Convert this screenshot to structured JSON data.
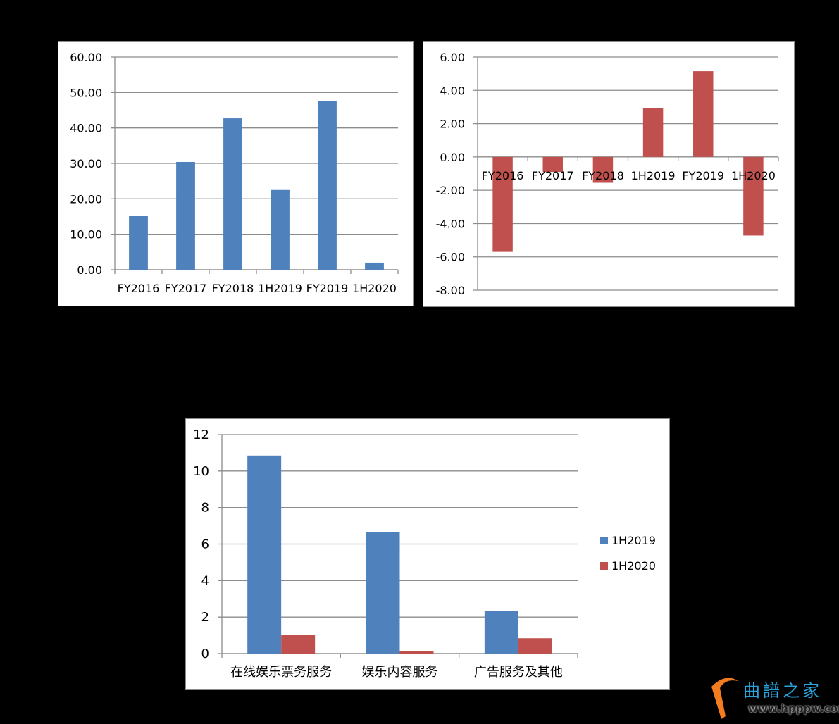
{
  "chart_data": [
    {
      "type": "bar",
      "categories": [
        "FY2016",
        "FY2017",
        "FY2018",
        "1H2019",
        "FY2019",
        "1H2020"
      ],
      "values": [
        15.3,
        30.4,
        42.7,
        22.5,
        47.5,
        2.0
      ],
      "ylim": [
        0,
        60
      ],
      "yticks": [
        "0.00",
        "10.00",
        "20.00",
        "30.00",
        "40.00",
        "50.00",
        "60.00"
      ],
      "grid": true,
      "color": "#4f81bd"
    },
    {
      "type": "bar",
      "categories": [
        "FY2016",
        "FY2017",
        "FY2018",
        "1H2019",
        "FY2019",
        "1H2020"
      ],
      "values": [
        -5.7,
        -0.9,
        -1.55,
        2.95,
        5.15,
        -4.72
      ],
      "ylim": [
        -8,
        6
      ],
      "yticks": [
        "-8.00",
        "-6.00",
        "-4.00",
        "-2.00",
        "0.00",
        "2.00",
        "4.00",
        "6.00"
      ],
      "grid": true,
      "color": "#c0504d"
    },
    {
      "type": "bar",
      "categories": [
        "在线娱乐票务服务",
        "娱乐内容服务",
        "广告服务及其他"
      ],
      "series": [
        {
          "name": "1H2019",
          "values": [
            10.85,
            6.65,
            2.35
          ],
          "color": "#4f81bd"
        },
        {
          "name": "1H2020",
          "values": [
            1.03,
            0.15,
            0.84
          ],
          "color": "#c0504d"
        }
      ],
      "ylim": [
        0,
        12
      ],
      "yticks": [
        "0",
        "2",
        "4",
        "6",
        "8",
        "10",
        "12"
      ],
      "grid": true,
      "legend": "right"
    }
  ],
  "watermark": {
    "title": "曲譜之家",
    "url": "www.hpppw.com"
  }
}
